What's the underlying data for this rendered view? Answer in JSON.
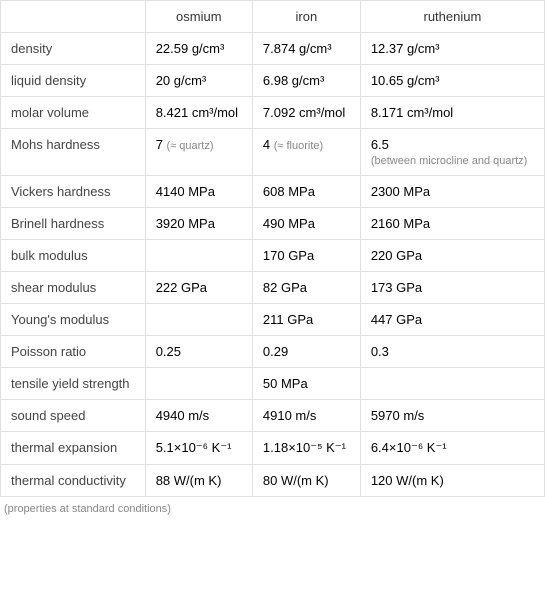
{
  "table": {
    "columns": [
      "",
      "osmium",
      "iron",
      "ruthenium"
    ],
    "rows": [
      {
        "label": "density",
        "osmium": "22.59 g/cm³",
        "iron": "7.874 g/cm³",
        "ruthenium": "12.37 g/cm³"
      },
      {
        "label": "liquid density",
        "osmium": "20 g/cm³",
        "iron": "6.98 g/cm³",
        "ruthenium": "10.65 g/cm³"
      },
      {
        "label": "molar volume",
        "osmium": "8.421 cm³/mol",
        "iron": "7.092 cm³/mol",
        "ruthenium": "8.171 cm³/mol"
      },
      {
        "label": "Mohs hardness",
        "osmium": "7 ",
        "osmium_note": "(≈ quartz)",
        "iron": "4 ",
        "iron_note": "(≈ fluorite)",
        "ruthenium": "6.5",
        "ruthenium_note": "(between microcline and quartz)"
      },
      {
        "label": "Vickers hardness",
        "osmium": "4140 MPa",
        "iron": "608 MPa",
        "ruthenium": "2300 MPa"
      },
      {
        "label": "Brinell hardness",
        "osmium": "3920 MPa",
        "iron": "490 MPa",
        "ruthenium": "2160 MPa"
      },
      {
        "label": "bulk modulus",
        "osmium": "",
        "iron": "170 GPa",
        "ruthenium": "220 GPa"
      },
      {
        "label": "shear modulus",
        "osmium": "222 GPa",
        "iron": "82 GPa",
        "ruthenium": "173 GPa"
      },
      {
        "label": "Young's modulus",
        "osmium": "",
        "iron": "211 GPa",
        "ruthenium": "447 GPa"
      },
      {
        "label": "Poisson ratio",
        "osmium": "0.25",
        "iron": "0.29",
        "ruthenium": "0.3"
      },
      {
        "label": "tensile yield strength",
        "osmium": "",
        "iron": "50 MPa",
        "ruthenium": ""
      },
      {
        "label": "sound speed",
        "osmium": "4940 m/s",
        "iron": "4910 m/s",
        "ruthenium": "5970 m/s"
      },
      {
        "label": "thermal expansion",
        "osmium": "5.1×10⁻⁶ K⁻¹",
        "iron": "1.18×10⁻⁵ K⁻¹",
        "ruthenium": "6.4×10⁻⁶ K⁻¹"
      },
      {
        "label": "thermal conductivity",
        "osmium": "88 W/(m K)",
        "iron": "80 W/(m K)",
        "ruthenium": "120 W/(m K)"
      }
    ],
    "footnote": "(properties at standard conditions)"
  },
  "colors": {
    "border": "#e0e0e0",
    "text": "#333333",
    "note": "#888888",
    "background": "#ffffff"
  }
}
